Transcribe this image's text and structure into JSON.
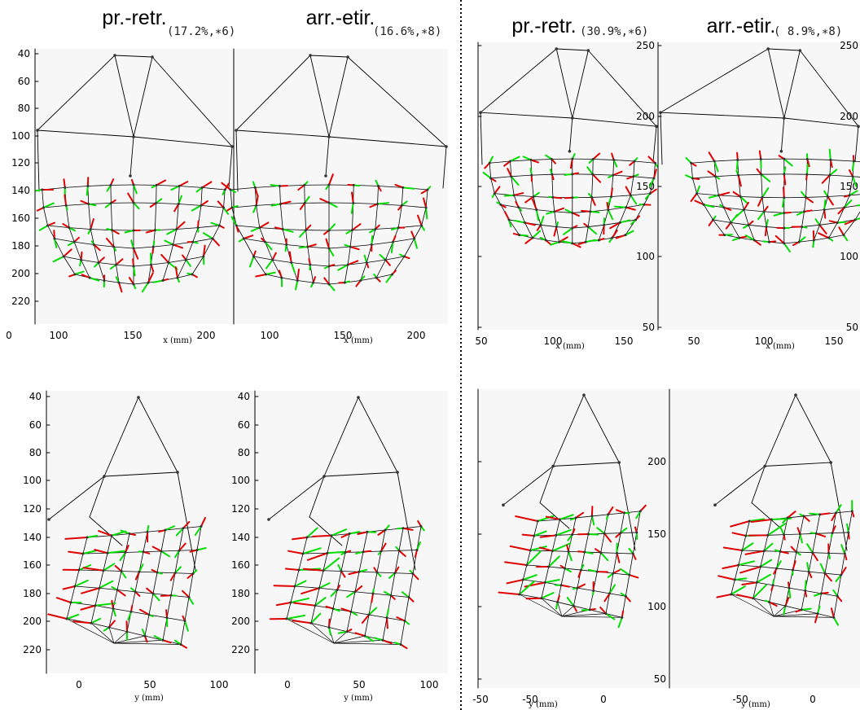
{
  "figure": {
    "divider_style": "dotted",
    "colors": {
      "background": "#ffffff",
      "mesh": "#000000",
      "vector_a": "#e00000",
      "vector_b": "#00dd00"
    },
    "top_titles": [
      {
        "label": "pr.-retr.",
        "stat": "(17.2%,∗6)"
      },
      {
        "label": "arr.-etir.",
        "stat": "(16.6%,∗8)"
      },
      {
        "label": "pr.-retr.",
        "stat": "(30.9%,∗6)"
      },
      {
        "label": "arr.-etir.",
        "stat": "( 8.9%,∗8)"
      }
    ],
    "x_axis_label": "x (mm)",
    "y_axis_label": "y (mm)"
  },
  "chart_data": [
    {
      "type": "scatter",
      "panel": "left top pr.-retr.",
      "view": "frontal",
      "xlabel": "x (mm)",
      "xlim": [
        40,
        220
      ],
      "ylim": [
        30,
        225
      ],
      "x_ticks": [
        "0",
        "100",
        "150",
        "200"
      ],
      "y_ticks": [
        40,
        60,
        80,
        100,
        120,
        140,
        160,
        180,
        200,
        220
      ]
    },
    {
      "type": "scatter",
      "panel": "left top arr.-etir.",
      "view": "frontal",
      "xlabel": "x (mm)",
      "xlim": [
        40,
        220
      ],
      "ylim": [
        30,
        225
      ],
      "x_ticks": [
        "100",
        "150",
        "200"
      ],
      "y_ticks": [
        40,
        60,
        80,
        100,
        120,
        140,
        160,
        180,
        200,
        220
      ]
    },
    {
      "type": "scatter",
      "panel": "left bottom pr.-retr.",
      "view": "lateral",
      "xlabel": "y (mm)",
      "xlim": [
        -25,
        110
      ],
      "ylim": [
        30,
        225
      ],
      "x_ticks": [
        0,
        50,
        100
      ],
      "y_ticks": [
        40,
        60,
        80,
        100,
        120,
        140,
        160,
        180,
        200,
        220
      ]
    },
    {
      "type": "scatter",
      "panel": "left bottom arr.-etir.",
      "view": "lateral",
      "xlabel": "y (mm)",
      "xlim": [
        -10,
        110
      ],
      "ylim": [
        30,
        225
      ],
      "x_ticks": [
        0,
        50,
        100
      ],
      "y_ticks": [
        40,
        60,
        80,
        100,
        120,
        140,
        160,
        180,
        200,
        220
      ]
    },
    {
      "type": "scatter",
      "panel": "right top pr.-retr.",
      "view": "frontal",
      "xlabel": "x (mm)",
      "xlim": [
        45,
        180
      ],
      "ylim": [
        50,
        250
      ],
      "x_ticks": [
        "50",
        "100",
        "150"
      ],
      "y_ticks": [
        50,
        100,
        150,
        200,
        250
      ]
    },
    {
      "type": "scatter",
      "panel": "right top arr.-etir.",
      "view": "frontal",
      "xlabel": "x (mm)",
      "xlim": [
        45,
        180
      ],
      "ylim": [
        50,
        250
      ],
      "x_ticks": [
        "50",
        "100",
        "150"
      ],
      "y_ticks": [
        50,
        100,
        150,
        200,
        250
      ]
    },
    {
      "type": "scatter",
      "panel": "right bottom pr.-retr.",
      "view": "lateral",
      "xlabel": "y (mm)",
      "xlim": [
        -100,
        30
      ],
      "ylim": [
        50,
        250
      ],
      "x_ticks": [
        -50,
        0
      ],
      "y_ticks": [
        50,
        100,
        150,
        200
      ]
    },
    {
      "type": "scatter",
      "panel": "right bottom arr.-etir.",
      "view": "lateral",
      "xlabel": "y (mm)",
      "xlim": [
        -100,
        30
      ],
      "ylim": [
        50,
        250
      ],
      "x_ticks": [
        -50,
        0
      ],
      "y_ticks": []
    }
  ]
}
